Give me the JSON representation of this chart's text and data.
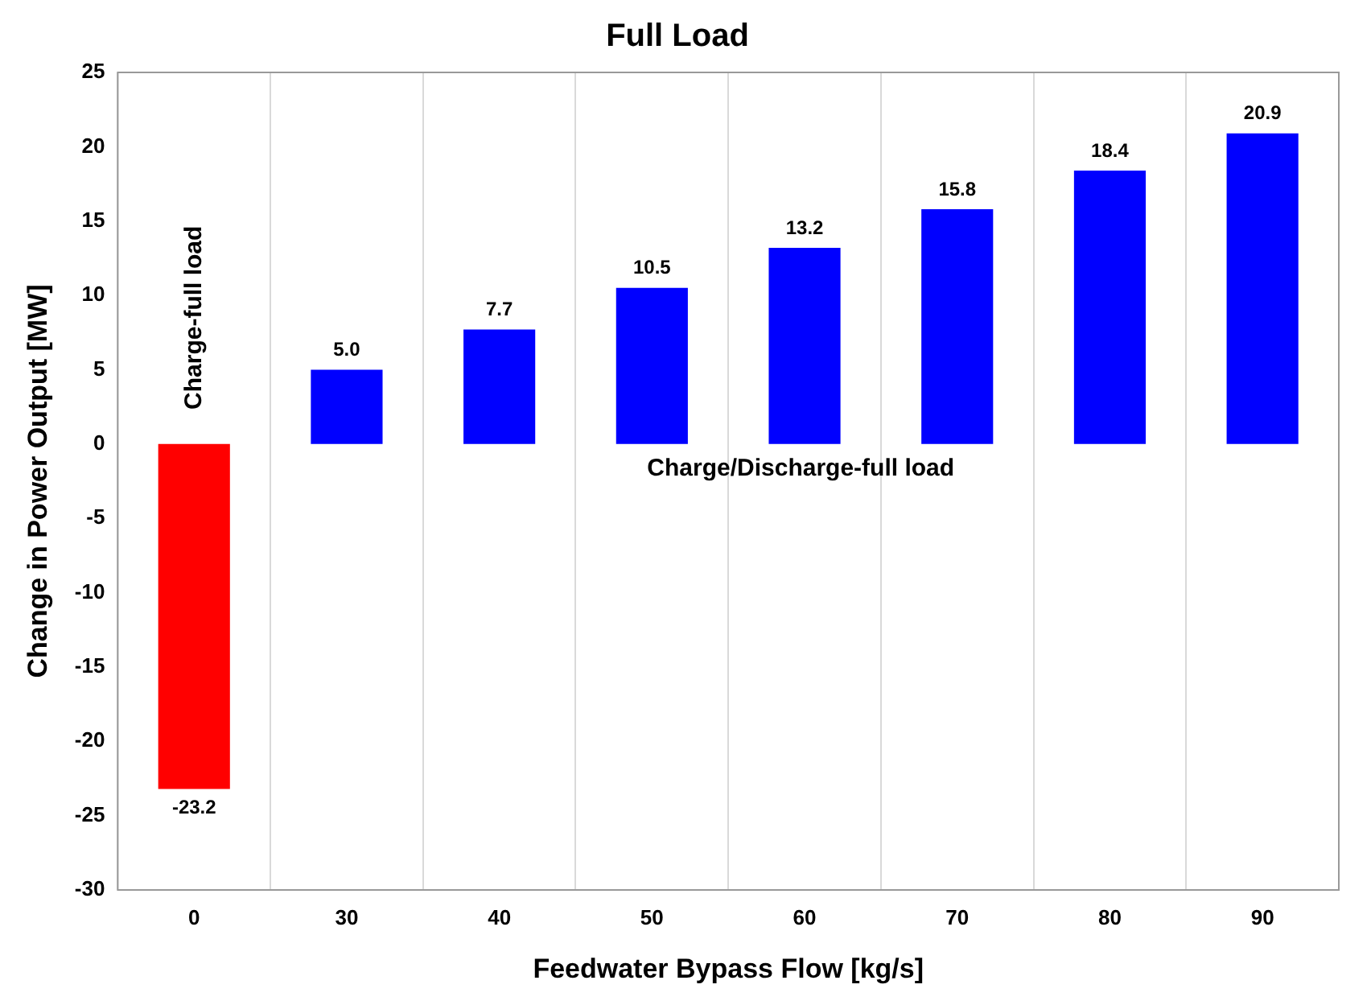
{
  "chart_data": {
    "type": "bar",
    "title": "Full Load",
    "xlabel": "Feedwater Bypass Flow [kg/s]",
    "ylabel": "Change in Power Output [MW]",
    "categories": [
      "0",
      "30",
      "40",
      "50",
      "60",
      "70",
      "80",
      "90"
    ],
    "values": [
      -23.2,
      5.0,
      7.7,
      10.5,
      13.2,
      15.8,
      18.4,
      20.9
    ],
    "value_labels": [
      "-23.2",
      "5.0",
      "7.7",
      "10.5",
      "13.2",
      "15.8",
      "18.4",
      "20.9"
    ],
    "colors": [
      "#ff0000",
      "#0000ff",
      "#0000ff",
      "#0000ff",
      "#0000ff",
      "#0000ff",
      "#0000ff",
      "#0000ff"
    ],
    "ylim": [
      -30,
      25
    ],
    "yticks": [
      -30,
      -25,
      -20,
      -15,
      -10,
      -5,
      0,
      5,
      10,
      15,
      20,
      25
    ],
    "grid": "x",
    "legend": false,
    "annotations": [
      "Charge-full load",
      "Charge/Discharge-full load"
    ]
  }
}
